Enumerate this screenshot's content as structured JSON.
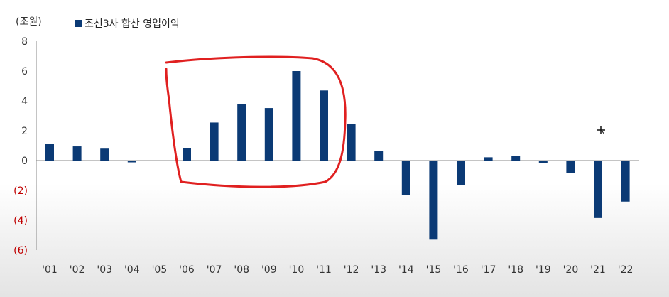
{
  "chart_data": {
    "type": "bar",
    "unit_label": "(조원)",
    "series": [
      {
        "name": "조선3사 합산 영업이익",
        "color": "#0b3a75",
        "values": [
          1.1,
          0.95,
          0.8,
          -0.12,
          -0.03,
          0.85,
          2.55,
          3.8,
          3.52,
          6.0,
          4.7,
          2.45,
          0.65,
          -2.3,
          -5.3,
          -1.62,
          0.22,
          0.3,
          -0.16,
          -0.85,
          -3.85,
          -2.75
        ]
      }
    ],
    "categories": [
      "'01",
      "'02",
      "'03",
      "'04",
      "'05",
      "'06",
      "'07",
      "'08",
      "'09",
      "'10",
      "'11",
      "'12",
      "'13",
      "'14",
      "'15",
      "'16",
      "'17",
      "'18",
      "'19",
      "'20",
      "'21",
      "'22"
    ],
    "yticks": [
      "8",
      "6",
      "4",
      "2",
      "0",
      "(2)",
      "(4)",
      "(6)"
    ],
    "ylim": [
      -6,
      8
    ],
    "legend_position": "top-left",
    "negative_tick_color": "#c00000",
    "annotation_color": "#e02020"
  }
}
